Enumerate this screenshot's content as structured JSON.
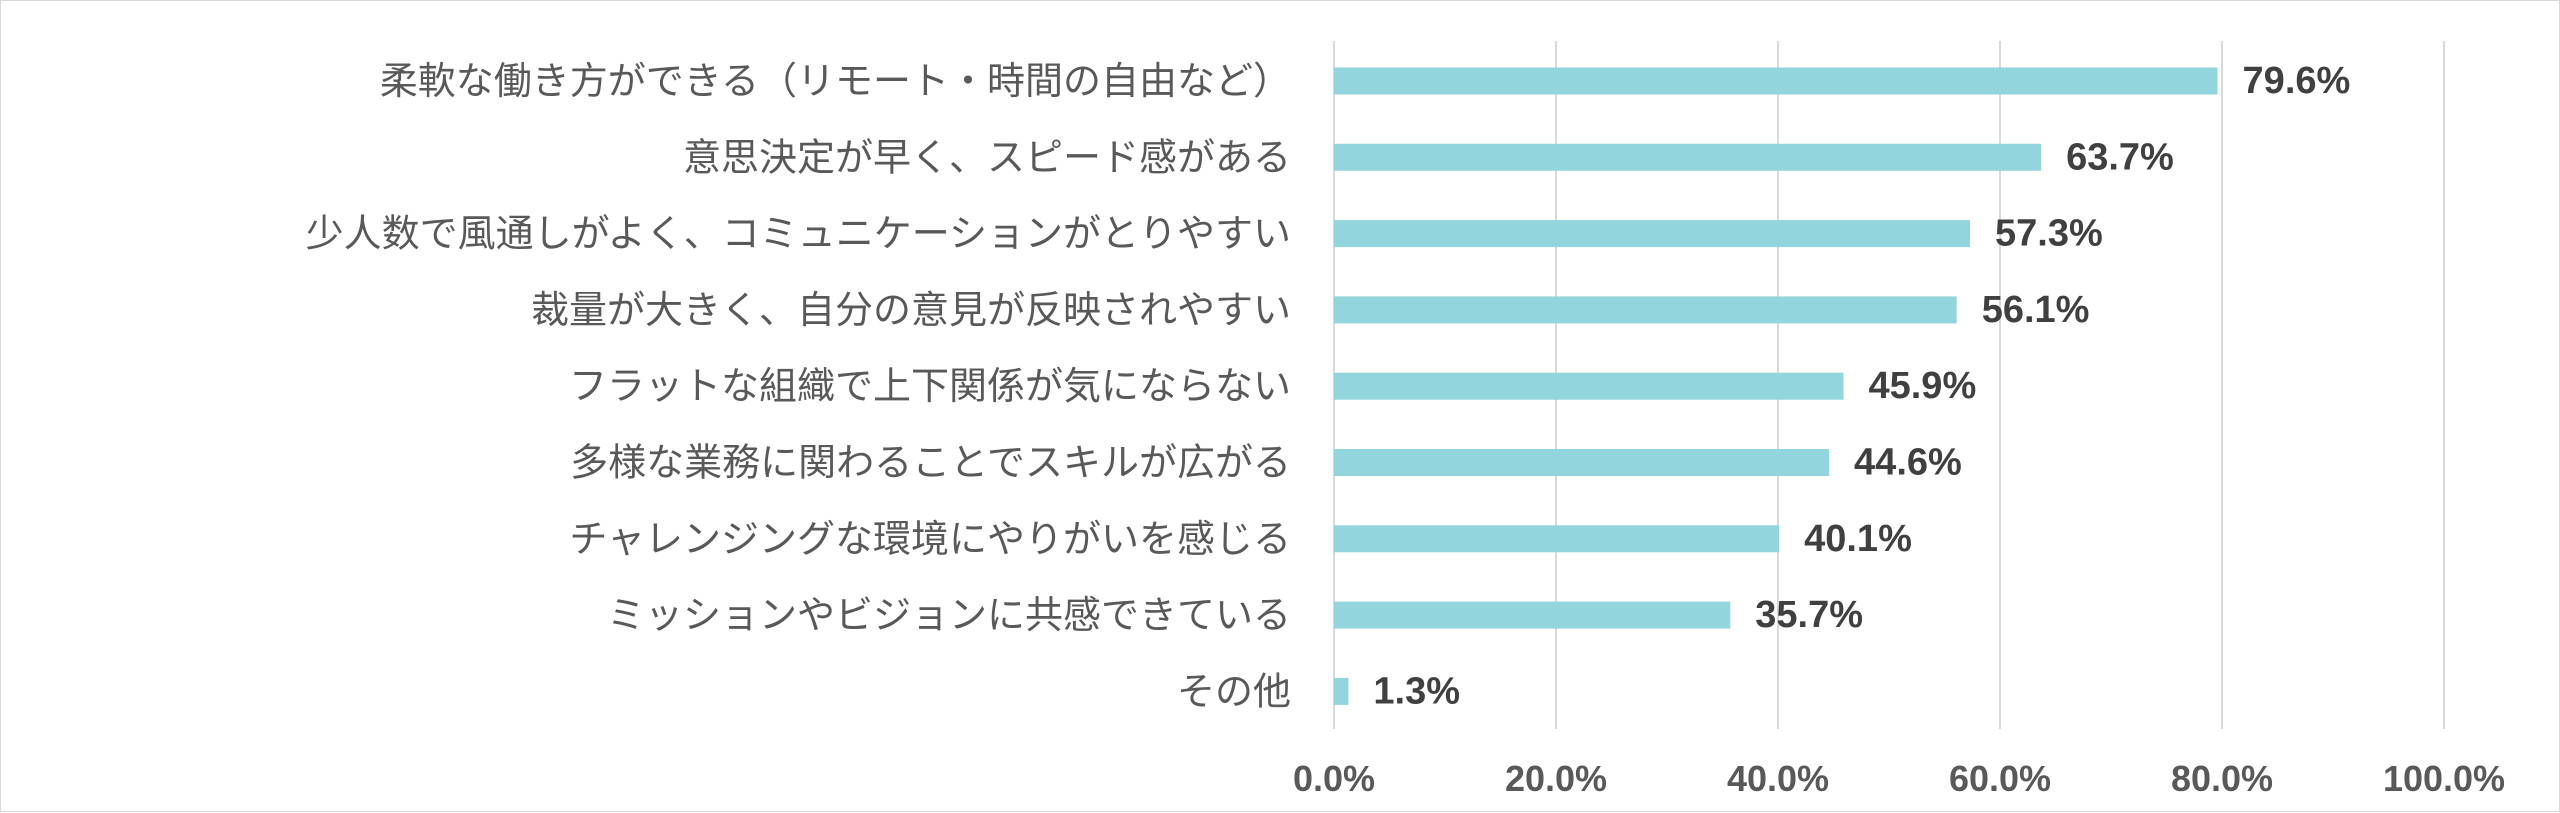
{
  "chart_data": {
    "type": "bar",
    "orientation": "horizontal",
    "categories": [
      "柔軟な働き方ができる（リモート・時間の自由など）",
      "意思決定が早く、スピード感がある",
      "少人数で風通しがよく、コミュニケーションがとりやすい",
      "裁量が大きく、自分の意見が反映されやすい",
      "フラットな組織で上下関係が気にならない",
      "多様な業務に関わることでスキルが広がる",
      "チャレンジングな環境にやりがいを感じる",
      "ミッションやビジョンに共感できている",
      "その他"
    ],
    "values": [
      79.6,
      63.7,
      57.3,
      56.1,
      45.9,
      44.6,
      40.1,
      35.7,
      1.3
    ],
    "value_labels": [
      "79.6%",
      "63.7%",
      "57.3%",
      "56.1%",
      "45.9%",
      "44.6%",
      "40.1%",
      "35.7%",
      "1.3%"
    ],
    "xlim": [
      0,
      100
    ],
    "x_ticks": [
      0,
      20,
      40,
      60,
      80,
      100
    ],
    "x_tick_labels": [
      "0.0%",
      "20.0%",
      "40.0%",
      "60.0%",
      "80.0%",
      "100.0%"
    ],
    "title": "",
    "xlabel": "",
    "ylabel": "",
    "grid": true,
    "legend": "none",
    "bar_color": "#92d5dc",
    "grid_color": "#d9d9d9",
    "label_color": "#595959",
    "value_label_color": "#404040"
  }
}
